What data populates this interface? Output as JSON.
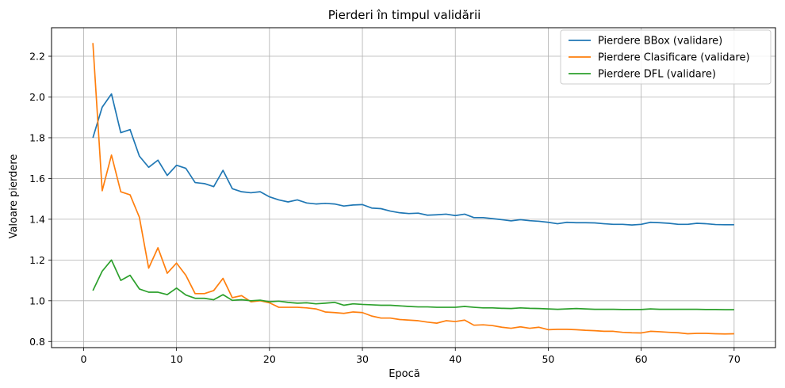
{
  "chart_data": {
    "type": "line",
    "title": "Pierderi în timpul validării",
    "xlabel": "Epocă",
    "ylabel": "Valoare pierdere",
    "xlim": [
      -3.45,
      74.45
    ],
    "ylim": [
      0.77,
      2.34
    ],
    "xticks": [
      0,
      10,
      20,
      30,
      40,
      50,
      60,
      70
    ],
    "yticks": [
      0.8,
      1.0,
      1.2,
      1.4,
      1.6,
      1.8,
      2.0,
      2.2
    ],
    "grid": true,
    "legend_position": "top-right",
    "x": [
      1,
      2,
      3,
      4,
      5,
      6,
      7,
      8,
      9,
      10,
      11,
      12,
      13,
      14,
      15,
      16,
      17,
      18,
      19,
      20,
      21,
      22,
      23,
      24,
      25,
      26,
      27,
      28,
      29,
      30,
      31,
      32,
      33,
      34,
      35,
      36,
      37,
      38,
      39,
      40,
      41,
      42,
      43,
      44,
      45,
      46,
      47,
      48,
      49,
      50,
      51,
      52,
      53,
      54,
      55,
      56,
      57,
      58,
      59,
      60,
      61,
      62,
      63,
      64,
      65,
      66,
      67,
      68,
      69,
      70
    ],
    "series": [
      {
        "name": "Pierdere BBox (validare)",
        "color": "#1f77b4",
        "values": [
          1.8,
          1.95,
          2.015,
          1.825,
          1.84,
          1.71,
          1.655,
          1.69,
          1.615,
          1.665,
          1.65,
          1.58,
          1.575,
          1.56,
          1.64,
          1.55,
          1.535,
          1.53,
          1.535,
          1.51,
          1.495,
          1.485,
          1.495,
          1.48,
          1.475,
          1.478,
          1.475,
          1.465,
          1.47,
          1.472,
          1.455,
          1.452,
          1.44,
          1.432,
          1.428,
          1.43,
          1.42,
          1.422,
          1.425,
          1.418,
          1.425,
          1.408,
          1.408,
          1.403,
          1.398,
          1.392,
          1.398,
          1.393,
          1.39,
          1.385,
          1.378,
          1.385,
          1.383,
          1.383,
          1.382,
          1.378,
          1.375,
          1.375,
          1.372,
          1.375,
          1.385,
          1.383,
          1.38,
          1.375,
          1.375,
          1.38,
          1.378,
          1.374,
          1.373,
          1.373
        ]
      },
      {
        "name": "Pierdere Clasificare (validare)",
        "color": "#ff7f0e",
        "values": [
          2.265,
          1.54,
          1.715,
          1.535,
          1.52,
          1.41,
          1.16,
          1.26,
          1.135,
          1.185,
          1.125,
          1.035,
          1.035,
          1.05,
          1.11,
          1.015,
          1.025,
          0.995,
          1.0,
          0.99,
          0.968,
          0.968,
          0.968,
          0.965,
          0.96,
          0.945,
          0.942,
          0.938,
          0.945,
          0.942,
          0.925,
          0.915,
          0.915,
          0.908,
          0.905,
          0.902,
          0.895,
          0.89,
          0.902,
          0.898,
          0.905,
          0.88,
          0.882,
          0.878,
          0.87,
          0.865,
          0.872,
          0.865,
          0.87,
          0.858,
          0.86,
          0.86,
          0.858,
          0.855,
          0.853,
          0.85,
          0.85,
          0.845,
          0.843,
          0.842,
          0.85,
          0.848,
          0.845,
          0.843,
          0.838,
          0.84,
          0.84,
          0.838,
          0.837,
          0.838
        ]
      },
      {
        "name": "Pierdere DFL (validare)",
        "color": "#2ca02c",
        "values": [
          1.05,
          1.145,
          1.2,
          1.1,
          1.125,
          1.058,
          1.042,
          1.042,
          1.03,
          1.062,
          1.028,
          1.012,
          1.012,
          1.005,
          1.03,
          1.002,
          1.005,
          1.0,
          1.003,
          0.995,
          0.998,
          0.992,
          0.988,
          0.99,
          0.985,
          0.988,
          0.992,
          0.978,
          0.985,
          0.982,
          0.98,
          0.978,
          0.978,
          0.975,
          0.972,
          0.97,
          0.97,
          0.968,
          0.968,
          0.968,
          0.972,
          0.968,
          0.965,
          0.965,
          0.963,
          0.962,
          0.965,
          0.963,
          0.962,
          0.96,
          0.958,
          0.96,
          0.962,
          0.96,
          0.958,
          0.958,
          0.958,
          0.957,
          0.957,
          0.957,
          0.96,
          0.958,
          0.958,
          0.958,
          0.958,
          0.958,
          0.957,
          0.957,
          0.956,
          0.956
        ]
      }
    ]
  }
}
